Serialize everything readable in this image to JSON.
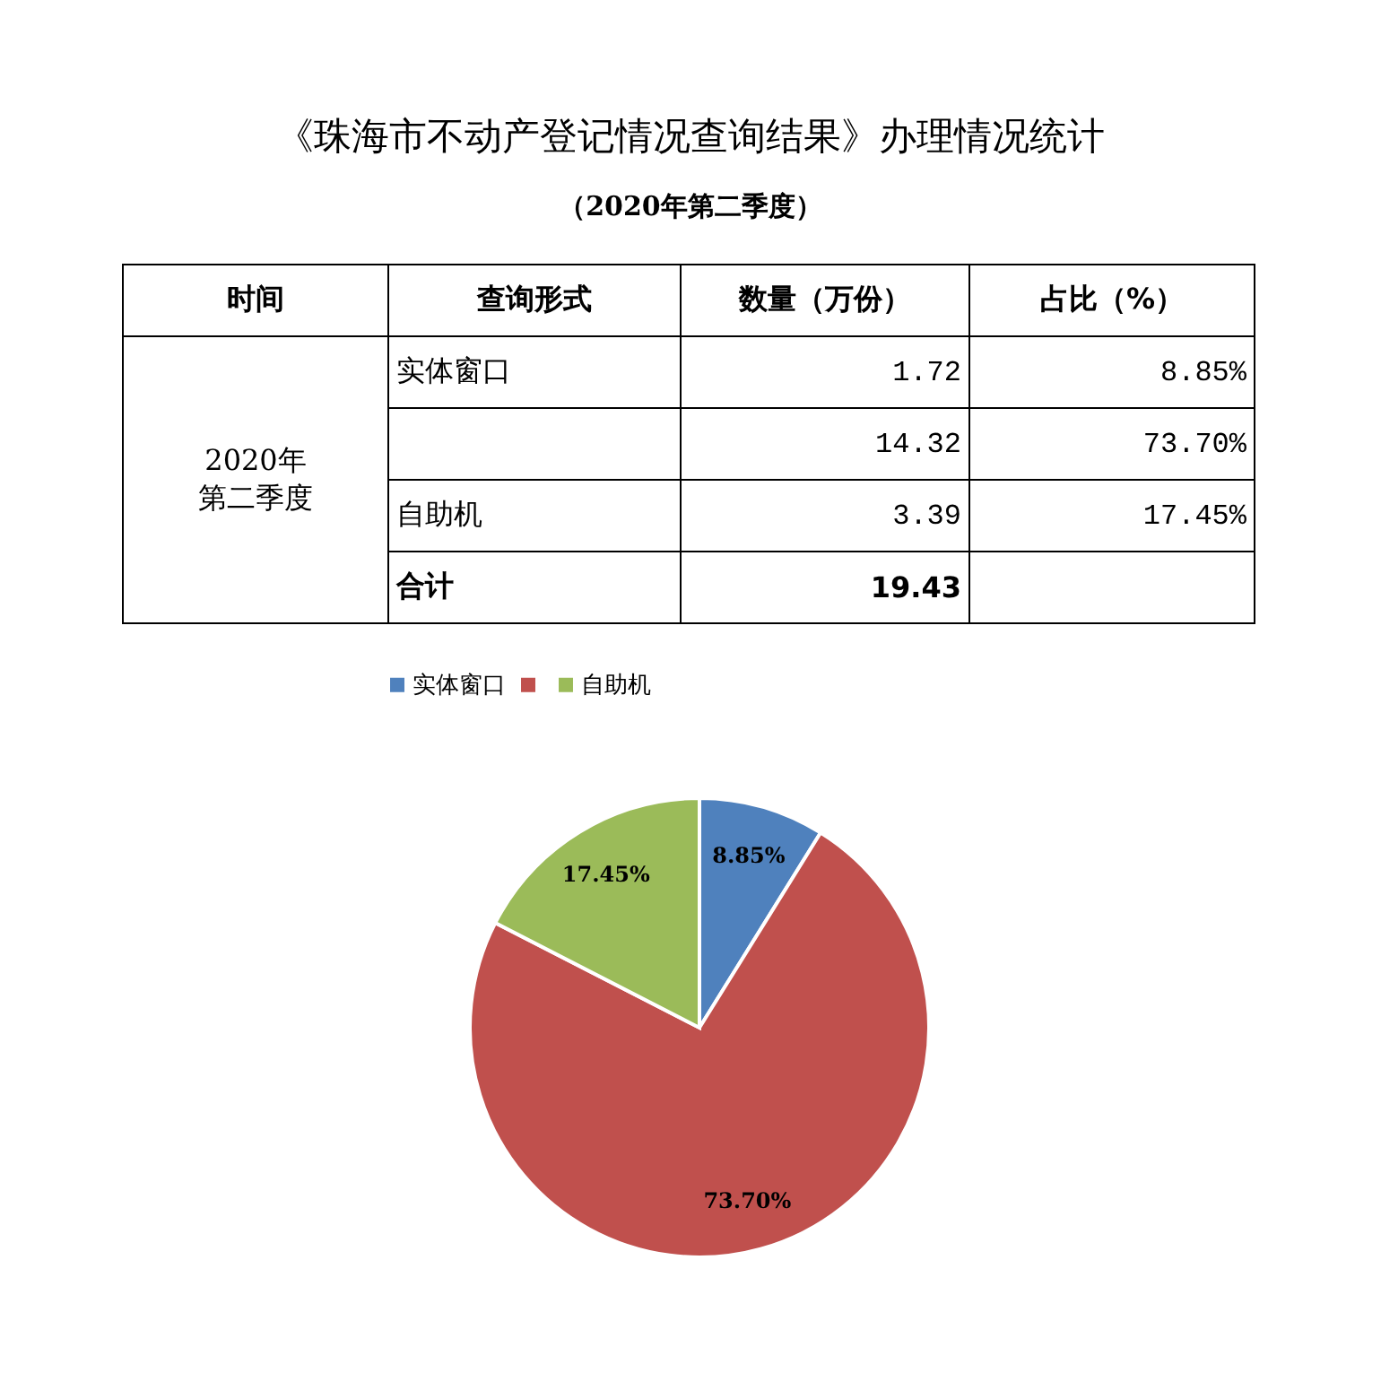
{
  "chart_data": [
    {
      "type": "other",
      "title": "《珠海市不动产登记情况查询结果》办理情况统计",
      "subtitle": "（2020年第二季度）",
      "categories": [
        "实体窗口",
        null,
        "自助机"
      ],
      "annotations": [
        "时间",
        "查询形式",
        "数量（万份）",
        "占比（%）",
        "2020年第二季度",
        "1.72",
        "8.85%",
        "14.32",
        "73.70%",
        "3.39",
        "17.45%",
        "合计",
        "19.43"
      ]
    },
    {
      "type": "pie",
      "categories": [
        "实体窗口",
        null,
        "自助机"
      ],
      "values": [
        8.85,
        73.7,
        17.45
      ],
      "colors": [
        "#4f81bd",
        "#c0504d",
        "#9bbb59"
      ],
      "value_labels": [
        "8.85%",
        "73.70%",
        "17.45%"
      ],
      "legend": "top"
    }
  ]
}
